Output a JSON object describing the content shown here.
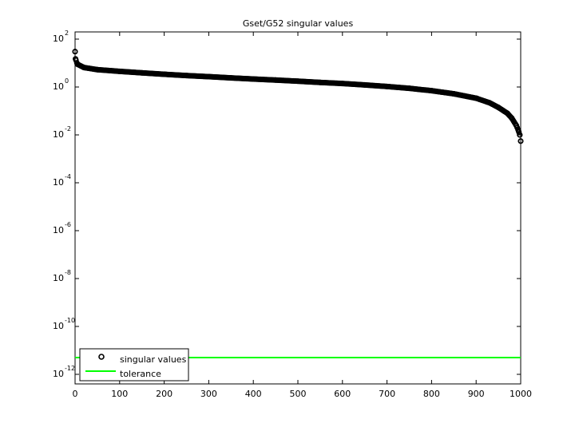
{
  "chart_data": {
    "type": "scatter",
    "title": "Gset/G52 singular values",
    "xlabel": "",
    "ylabel": "",
    "xlim": [
      0,
      1000
    ],
    "ylim_log10": [
      -12.4,
      2.3
    ],
    "yscale": "log",
    "x_ticks": [
      "0",
      "100",
      "200",
      "300",
      "400",
      "500",
      "600",
      "700",
      "800",
      "900",
      "1000"
    ],
    "y_ticks": [
      {
        "base": "10",
        "exp": "2"
      },
      {
        "base": "10",
        "exp": "0"
      },
      {
        "base": "10",
        "exp": "-2"
      },
      {
        "base": "10",
        "exp": "-4"
      },
      {
        "base": "10",
        "exp": "-6"
      },
      {
        "base": "10",
        "exp": "-8"
      },
      {
        "base": "10",
        "exp": "-10"
      },
      {
        "base": "10",
        "exp": "-12"
      }
    ],
    "series": [
      {
        "name": "singular values",
        "marker": "circle-open",
        "color": "#000000",
        "points": [
          [
            0,
            30
          ],
          [
            1,
            15
          ],
          [
            5,
            9
          ],
          [
            20,
            6.5
          ],
          [
            50,
            5.3
          ],
          [
            100,
            4.5
          ],
          [
            150,
            3.9
          ],
          [
            200,
            3.4
          ],
          [
            250,
            3.0
          ],
          [
            300,
            2.7
          ],
          [
            350,
            2.4
          ],
          [
            400,
            2.15
          ],
          [
            450,
            1.95
          ],
          [
            500,
            1.75
          ],
          [
            550,
            1.55
          ],
          [
            600,
            1.4
          ],
          [
            650,
            1.22
          ],
          [
            700,
            1.05
          ],
          [
            750,
            0.88
          ],
          [
            800,
            0.7
          ],
          [
            850,
            0.52
          ],
          [
            900,
            0.34
          ],
          [
            930,
            0.22
          ],
          [
            950,
            0.14
          ],
          [
            970,
            0.08
          ],
          [
            980,
            0.05
          ],
          [
            990,
            0.025
          ],
          [
            995,
            0.015
          ],
          [
            998,
            0.01
          ],
          [
            1000,
            0.0055
          ]
        ]
      },
      {
        "name": "tolerance",
        "marker": "line",
        "color": "#00ff00",
        "value": 5e-12
      }
    ],
    "legend_position": "bottom-left",
    "grid": false
  }
}
